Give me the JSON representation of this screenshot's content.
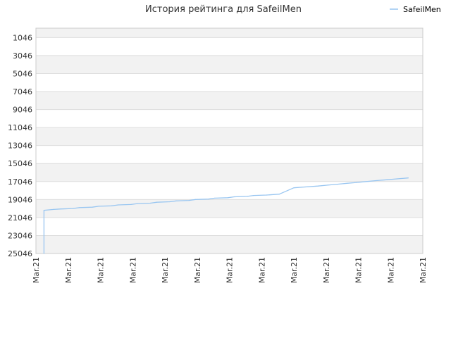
{
  "chart_data": {
    "type": "line",
    "title": "История рейтинга для SafeilMen",
    "xlabel": "",
    "ylabel": "",
    "y_reversed": true,
    "ylim": [
      25046,
      0
    ],
    "y_ticks": [
      "1046",
      "3046",
      "5046",
      "7046",
      "9046",
      "11046",
      "13046",
      "15046",
      "17046",
      "19046",
      "21046",
      "23046",
      "25046"
    ],
    "x_ticks": [
      "Mar.21",
      "Mar.21",
      "Mar.21",
      "Mar.21",
      "Mar.21",
      "Mar.21",
      "Mar.21",
      "Mar.21",
      "Mar.21",
      "Mar.21",
      "Mar.21",
      "Mar.21",
      "Mar.21"
    ],
    "x_range": [
      0,
      12
    ],
    "legend_position": "top-right",
    "grid": true,
    "series": [
      {
        "name": "SafeilMen",
        "color": "#99c6f1",
        "x": [
          0.25,
          0.25,
          0.55,
          0.75,
          1.15,
          1.35,
          1.75,
          1.95,
          2.35,
          2.55,
          2.95,
          3.15,
          3.55,
          3.75,
          4.15,
          4.35,
          4.75,
          4.95,
          5.35,
          5.55,
          5.95,
          6.15,
          6.55,
          6.75,
          7.15,
          7.55,
          8.0,
          8.35,
          8.75,
          9.05,
          9.35,
          9.65,
          9.95,
          10.25,
          10.55,
          10.9,
          11.2,
          11.55
        ],
        "y": [
          25046,
          20246,
          20146,
          20096,
          20046,
          19946,
          19896,
          19796,
          19746,
          19646,
          19596,
          19496,
          19446,
          19346,
          19296,
          19196,
          19146,
          19046,
          18996,
          18896,
          18846,
          18746,
          18696,
          18596,
          18546,
          18446,
          17746,
          17646,
          17546,
          17446,
          17346,
          17246,
          17146,
          17046,
          16946,
          16846,
          16746,
          16646
        ]
      }
    ],
    "colors": {
      "band_dark": "#f2f2f2",
      "band_light": "#ffffff",
      "grid": "#dddddd",
      "axis": "#cccccc",
      "line": "#99c6f1"
    }
  }
}
